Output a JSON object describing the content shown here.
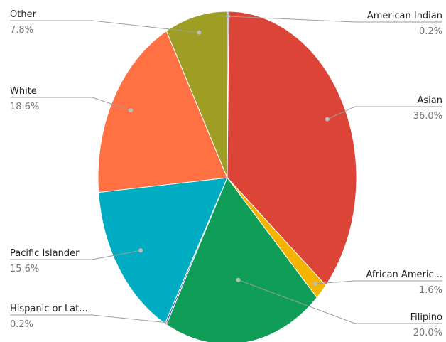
{
  "chart_data": {
    "type": "pie",
    "start_category": "American Indian",
    "direction": "clockwise",
    "slices": [
      {
        "label": "American Indian",
        "display_label": "American Indian",
        "value": 0.2,
        "pct_label": "0.2%",
        "color": "#9e9e9e"
      },
      {
        "label": "Asian",
        "display_label": "Asian",
        "value": 36.0,
        "pct_label": "36.0%",
        "color": "#db4437"
      },
      {
        "label": "African American",
        "display_label": "African Americ...",
        "value": 1.6,
        "pct_label": "1.6%",
        "color": "#f4b400"
      },
      {
        "label": "Filipino",
        "display_label": "Filipino",
        "value": 20.0,
        "pct_label": "20.0%",
        "color": "#0f9d58"
      },
      {
        "label": "Hispanic or Latino",
        "display_label": "Hispanic or Lat...",
        "value": 0.2,
        "pct_label": "0.2%",
        "color": "#3f51b5"
      },
      {
        "label": "Pacific Islander",
        "display_label": "Pacific Islander",
        "value": 15.6,
        "pct_label": "15.6%",
        "color": "#00acc1"
      },
      {
        "label": "White",
        "display_label": "White",
        "value": 18.6,
        "pct_label": "18.6%",
        "color": "#ff7043"
      },
      {
        "label": "Other",
        "display_label": "Other",
        "value": 7.8,
        "pct_label": "7.8%",
        "color": "#9e9e24"
      }
    ]
  }
}
